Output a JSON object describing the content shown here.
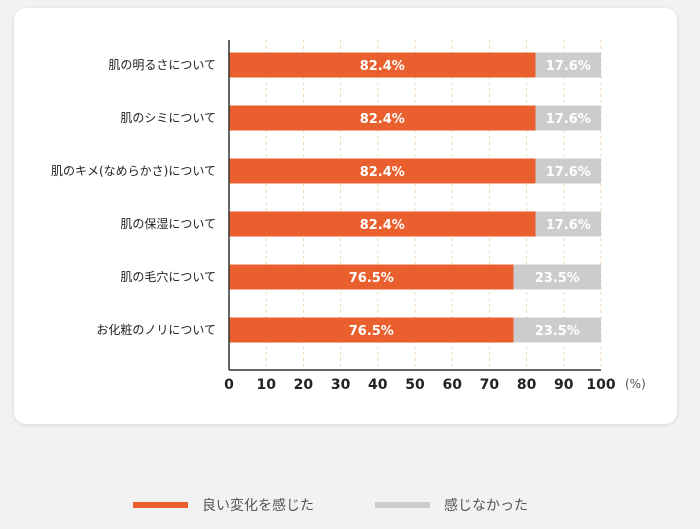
{
  "colors": {
    "positive": "#e95f2d",
    "negative": "#cccccc",
    "grid": "#efd9b8",
    "axis": "#333333",
    "text": "#222222"
  },
  "chart_data": {
    "type": "bar",
    "orientation": "horizontal",
    "stacked": true,
    "categories": [
      "肌の明るさについて",
      "肌のシミについて",
      "肌のキメ(なめらかさ)について",
      "肌の保湿について",
      "肌の毛穴について",
      "お化粧のノリについて"
    ],
    "series": [
      {
        "name": "良い変化を感じた",
        "values": [
          82.4,
          82.4,
          82.4,
          82.4,
          76.5,
          76.5
        ],
        "labels": [
          "82.4%",
          "82.4%",
          "82.4%",
          "82.4%",
          "76.5%",
          "76.5%"
        ]
      },
      {
        "name": "感じなかった",
        "values": [
          17.6,
          17.6,
          17.6,
          17.6,
          23.5,
          23.5
        ],
        "labels": [
          "17.6%",
          "17.6%",
          "17.6%",
          "17.6%",
          "23.5%",
          "23.5%"
        ]
      }
    ],
    "xlim": [
      0,
      100
    ],
    "xticks": [
      0,
      10,
      20,
      30,
      40,
      50,
      60,
      70,
      80,
      90,
      100
    ],
    "xunit": "(%)",
    "grid": true,
    "legend_position": "bottom"
  }
}
